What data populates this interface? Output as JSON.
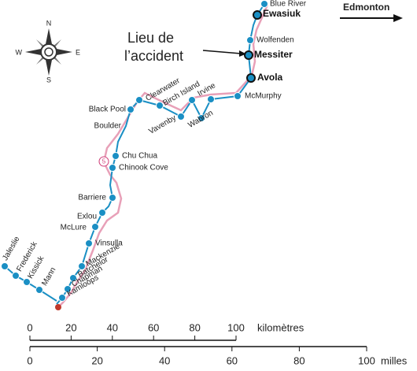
{
  "compass": {
    "n": "N",
    "e": "E",
    "s": "S",
    "w": "W"
  },
  "direction": "Edmonton",
  "accident": [
    "Lieu de",
    "l’accident"
  ],
  "road_marker": "5",
  "stations": [
    "Blue River",
    "Ewasiuk",
    "Wolfenden",
    "Messiter",
    "Avola",
    "McMurphy",
    "Irvine",
    "Wabron",
    "Birch Island",
    "Vavenby",
    "Clearwater",
    "Black Pool",
    "Boulder",
    "Chu Chua",
    "Chinook Cove",
    "Barriere",
    "Exlou",
    "McLure",
    "Vinsulla",
    "Mackenzie",
    "Batchelor",
    "Chapman",
    "Kamloops",
    "Jaleslie",
    "Frederick",
    "Kissick",
    "Mann"
  ],
  "scale": {
    "km": {
      "ticks": [
        0,
        20,
        40,
        60,
        80,
        100
      ],
      "unit": "kilomètres"
    },
    "miles": {
      "ticks": [
        0,
        20,
        40,
        60,
        80,
        100
      ],
      "unit": "milles"
    }
  }
}
